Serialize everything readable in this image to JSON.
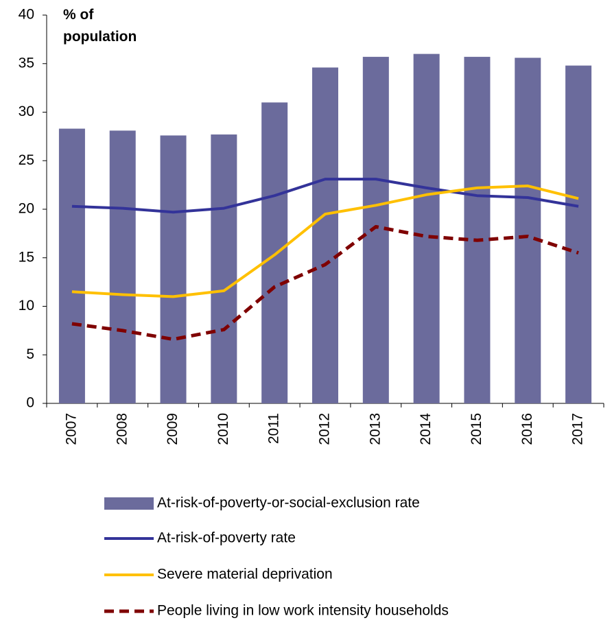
{
  "chart_data": {
    "type": "bar",
    "y_label": "% of population",
    "categories": [
      "2007",
      "2008",
      "2009",
      "2010",
      "2011",
      "2012",
      "2013",
      "2014",
      "2015",
      "2016",
      "2017"
    ],
    "series": [
      {
        "name": "At-risk-of-poverty-or-social-exclusion rate",
        "type": "bar",
        "color": "#6b6b9c",
        "values": [
          28.3,
          28.1,
          27.6,
          27.7,
          31.0,
          34.6,
          35.7,
          36.0,
          35.7,
          35.6,
          34.8
        ]
      },
      {
        "name": "At-risk-of-poverty rate",
        "type": "line",
        "color": "#333399",
        "values": [
          20.3,
          20.1,
          19.7,
          20.1,
          21.4,
          23.1,
          23.1,
          22.2,
          21.4,
          21.2,
          20.3
        ]
      },
      {
        "name": "Severe material deprivation",
        "type": "line",
        "color": "#ffc000",
        "values": [
          11.5,
          11.2,
          11.0,
          11.6,
          15.3,
          19.5,
          20.4,
          21.5,
          22.2,
          22.4,
          21.1
        ]
      },
      {
        "name": "People living in low work intensity households",
        "type": "line",
        "dashed": true,
        "color": "#7f0000",
        "values": [
          8.2,
          7.5,
          6.6,
          7.6,
          12.0,
          14.3,
          18.2,
          17.2,
          16.8,
          17.2,
          15.5
        ]
      }
    ],
    "ylim": [
      0,
      40
    ],
    "yticks": [
      0,
      5,
      10,
      15,
      20,
      25,
      30,
      35,
      40
    ],
    "grid": false
  }
}
